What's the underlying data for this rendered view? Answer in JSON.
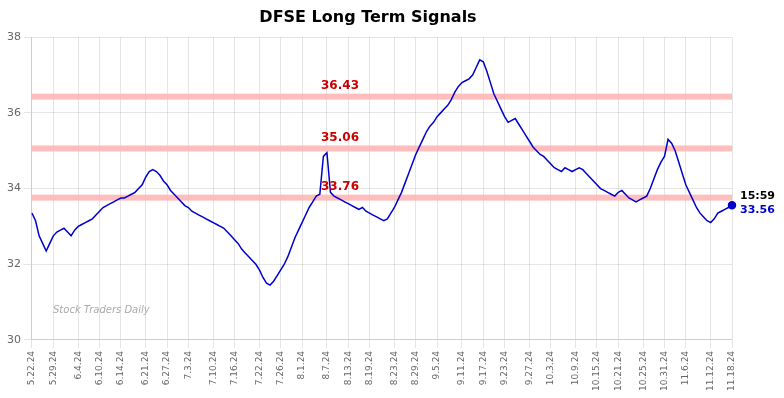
{
  "chart_data": {
    "type": "line",
    "title": "DFSE Long Term Signals",
    "color": "#0000cc",
    "grid": true,
    "ylim": [
      30,
      38
    ],
    "yticks": [
      30,
      32,
      34,
      36,
      38
    ],
    "hlines": [
      33.76,
      35.06,
      36.43
    ],
    "hline_color": "#ffb3b3",
    "annotations": [
      {
        "text": "36.43",
        "y": 36.43,
        "color": "#cc0000"
      },
      {
        "text": "35.06",
        "y": 35.06,
        "color": "#cc0000"
      },
      {
        "text": "33.76",
        "y": 33.76,
        "color": "#cc0000"
      }
    ],
    "end_labels": [
      {
        "text": "15:59",
        "color": "#000000"
      },
      {
        "text": "33.56",
        "color": "#0000cc"
      }
    ],
    "watermark": {
      "text": "Stock Traders Daily",
      "color": "#aaaaaa"
    },
    "categories": [
      "5.22.24",
      null,
      null,
      null,
      null,
      null,
      "5.29.24",
      null,
      null,
      null,
      null,
      null,
      null,
      "6.4.24",
      null,
      null,
      null,
      null,
      null,
      "6.10.24",
      null,
      null,
      null,
      null,
      null,
      "6.14.24",
      null,
      null,
      null,
      null,
      null,
      null,
      "6.21.24",
      null,
      null,
      null,
      null,
      null,
      "6.27.24",
      null,
      null,
      null,
      null,
      null,
      "7.3.24",
      null,
      null,
      null,
      null,
      null,
      null,
      "7.10.24",
      null,
      null,
      null,
      null,
      null,
      "7.16.24",
      null,
      null,
      null,
      null,
      null,
      null,
      "7.22.24",
      null,
      null,
      null,
      null,
      null,
      "7.26.24",
      null,
      null,
      null,
      null,
      null,
      "8.1.24",
      null,
      null,
      null,
      null,
      null,
      null,
      "8.7.24",
      null,
      null,
      null,
      null,
      null,
      "8.13.24",
      null,
      null,
      null,
      null,
      null,
      "8.19.24",
      null,
      null,
      null,
      null,
      null,
      null,
      "8.23.24",
      null,
      null,
      null,
      null,
      null,
      "8.29.24",
      null,
      null,
      null,
      null,
      null,
      "9.5.24",
      null,
      null,
      null,
      null,
      null,
      null,
      "9.11.24",
      null,
      null,
      null,
      null,
      null,
      "9.17.24",
      null,
      null,
      null,
      null,
      null,
      "9.23.24",
      null,
      null,
      null,
      null,
      null,
      null,
      "9.27.24",
      null,
      null,
      null,
      null,
      null,
      "10.3.24",
      null,
      null,
      null,
      null,
      null,
      null,
      "10.9.24",
      null,
      null,
      null,
      null,
      null,
      "10.15.24",
      null,
      null,
      null,
      null,
      null,
      "10.21.24",
      null,
      null,
      null,
      null,
      null,
      null,
      "10.25.24",
      null,
      null,
      null,
      null,
      null,
      "10.31.24",
      null,
      null,
      null,
      null,
      null,
      "11.6.24",
      null,
      null,
      null,
      null,
      null,
      null,
      "11.12.24",
      null,
      null,
      null,
      null,
      null,
      "11.18.24"
    ],
    "values": [
      33.35,
      33.15,
      32.75,
      32.55,
      32.35,
      32.55,
      32.75,
      32.85,
      32.9,
      32.95,
      32.85,
      32.75,
      32.9,
      33.0,
      33.05,
      33.1,
      33.15,
      33.2,
      33.3,
      33.4,
      33.5,
      33.55,
      33.6,
      33.65,
      33.7,
      33.75,
      33.75,
      33.8,
      33.85,
      33.9,
      34.0,
      34.1,
      34.3,
      34.45,
      34.5,
      34.45,
      34.35,
      34.2,
      34.1,
      33.95,
      33.85,
      33.75,
      33.65,
      33.55,
      33.5,
      33.4,
      33.35,
      33.3,
      33.25,
      33.2,
      33.15,
      33.1,
      33.05,
      33.0,
      32.95,
      32.85,
      32.75,
      32.65,
      32.55,
      32.4,
      32.3,
      32.2,
      32.1,
      32.0,
      31.85,
      31.65,
      31.5,
      31.45,
      31.55,
      31.7,
      31.85,
      32.0,
      32.2,
      32.45,
      32.7,
      32.9,
      33.1,
      33.3,
      33.5,
      33.65,
      33.8,
      33.85,
      34.85,
      34.95,
      33.9,
      33.8,
      33.75,
      33.7,
      33.65,
      33.6,
      33.55,
      33.5,
      33.45,
      33.5,
      33.4,
      33.35,
      33.3,
      33.25,
      33.2,
      33.15,
      33.2,
      33.35,
      33.5,
      33.7,
      33.9,
      34.15,
      34.4,
      34.65,
      34.9,
      35.1,
      35.3,
      35.5,
      35.65,
      35.75,
      35.9,
      36.0,
      36.1,
      36.2,
      36.35,
      36.55,
      36.7,
      36.8,
      36.85,
      36.9,
      37.0,
      37.2,
      37.4,
      37.35,
      37.1,
      36.8,
      36.5,
      36.3,
      36.1,
      35.9,
      35.75,
      35.8,
      35.85,
      35.7,
      35.55,
      35.4,
      35.25,
      35.1,
      35.0,
      34.9,
      34.85,
      34.75,
      34.65,
      34.55,
      34.5,
      34.45,
      34.55,
      34.5,
      34.45,
      34.5,
      34.55,
      34.5,
      34.4,
      34.3,
      34.2,
      34.1,
      34.0,
      33.95,
      33.9,
      33.85,
      33.8,
      33.9,
      33.95,
      33.85,
      33.75,
      33.7,
      33.65,
      33.7,
      33.75,
      33.8,
      34.0,
      34.25,
      34.5,
      34.7,
      34.85,
      35.3,
      35.2,
      35.0,
      34.7,
      34.4,
      34.1,
      33.9,
      33.7,
      33.5,
      33.35,
      33.25,
      33.15,
      33.1,
      33.2,
      33.35,
      33.4,
      33.45,
      33.5,
      33.56
    ]
  }
}
